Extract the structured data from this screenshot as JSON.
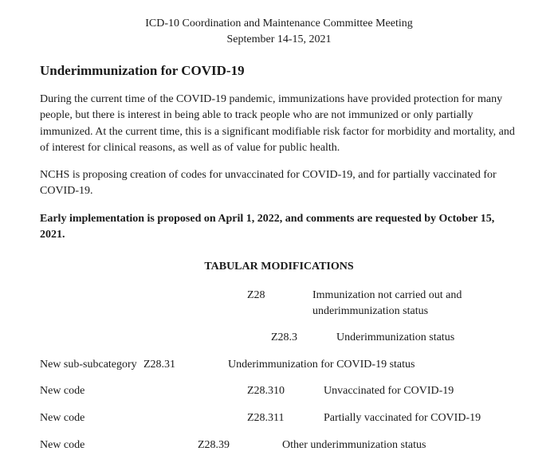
{
  "header": {
    "line1": "ICD-10 Coordination and Maintenance Committee Meeting",
    "line2": "September 14-15, 2021"
  },
  "title": "Underimmunization for COVID-19",
  "para1": "During the current time of the COVID-19 pandemic, immunizations have provided protection for many people, but there is interest in being able to track people who are not immunized or only partially immunized. At the current time, this is a significant modifiable risk factor for morbidity and mortality, and of interest for clinical reasons, as well as of value for public health.",
  "para2": "NCHS is proposing creation of codes for unvaccinated for COVID-19, and for partially vaccinated for COVID-19.",
  "para3": "Early implementation is proposed on April 1, 2022, and comments are requested by October 15, 2021.",
  "sectionHeading": "TABULAR MODIFICATIONS",
  "rows": [
    {
      "left": "",
      "code": "Z28",
      "codeIndent": 130,
      "descIndent": 0,
      "desc": "Immunization not carried out and underimmunization status"
    },
    {
      "left": "",
      "code": "Z28.3",
      "codeIndent": 160,
      "descIndent": 0,
      "desc": "Underimmunization status"
    },
    {
      "left": "New sub-subcategory",
      "code": "Z28.31",
      "codeIndent": 0,
      "descIndent": 24,
      "desc": "Underimmunization for COVID-19 status"
    },
    {
      "left": "New code",
      "code": "Z28.310",
      "codeIndent": 130,
      "descIndent": 14,
      "desc": "Unvaccinated for COVID-19"
    },
    {
      "left": "New code",
      "code": "Z28.311",
      "codeIndent": 130,
      "descIndent": 14,
      "desc": "Partially vaccinated for COVID-19"
    },
    {
      "left": "New code",
      "code": "Z28.39",
      "codeIndent": 68,
      "descIndent": 24,
      "desc": "Other underimmunization status"
    }
  ]
}
